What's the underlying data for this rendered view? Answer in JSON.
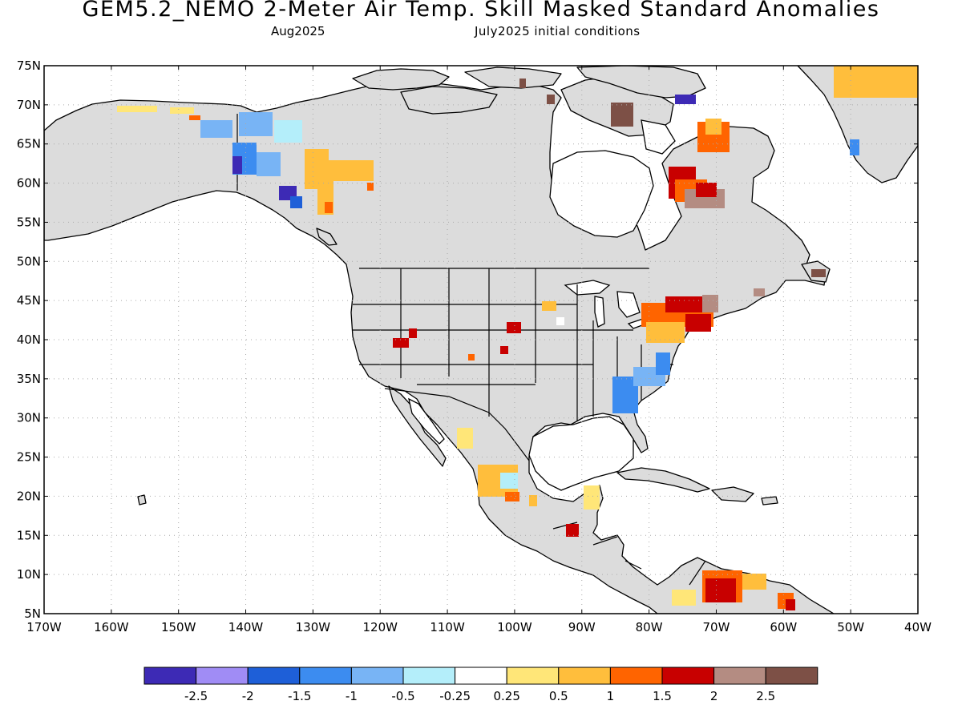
{
  "title": "GEM5.2_NEMO 2-Meter Air Temp. Skill Masked Standard Anomalies",
  "subtitle_left": "Aug2025",
  "subtitle_right": "July2025 initial conditions",
  "lat_labels": [
    "75N",
    "70N",
    "65N",
    "60N",
    "55N",
    "50N",
    "45N",
    "40N",
    "35N",
    "30N",
    "25N",
    "20N",
    "15N",
    "10N",
    "5N"
  ],
  "lon_labels": [
    "170W",
    "160W",
    "150W",
    "140W",
    "130W",
    "120W",
    "110W",
    "100W",
    "90W",
    "80W",
    "70W",
    "60W",
    "50W",
    "40W"
  ],
  "colorbar": {
    "colors": [
      "#3d2ab5",
      "#a08cf5",
      "#1e5fd8",
      "#3c8cf0",
      "#78b4f5",
      "#b4eefa",
      "#ffffff",
      "#ffe678",
      "#ffbe3c",
      "#ff6400",
      "#c80000",
      "#b48c82",
      "#7d5046"
    ],
    "labels": [
      "-2.5",
      "-2",
      "-1.5",
      "-1",
      "-0.5",
      "-0.25",
      "0.25",
      "0.5",
      "1",
      "1.5",
      "2",
      "2.5"
    ]
  },
  "colors": {
    "masked_land": "#dcdcdc",
    "coastline": "#000000",
    "grid": "#aaaaaa"
  }
}
